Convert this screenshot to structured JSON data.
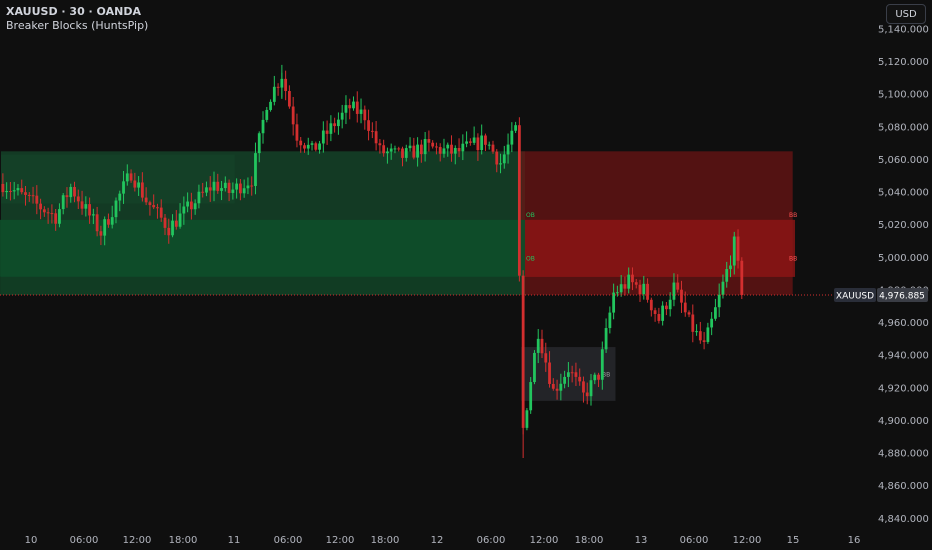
{
  "header": {
    "symbol_line": "XAUUSD · 30 · OANDA",
    "indicator_name": "Breaker Blocks (HuntsPip)"
  },
  "currency_button": "USD",
  "price_axis": {
    "ticks": [
      "5,140.000",
      "5,120.000",
      "5,100.000",
      "5,080.000",
      "5,060.000",
      "5,040.000",
      "5,020.000",
      "5,000.000",
      "4,980.000",
      "4,960.000",
      "4,940.000",
      "4,920.000",
      "4,900.000",
      "4,880.000",
      "4,860.000",
      "4,840.000"
    ],
    "last_price_label": "4,976.885",
    "symbol_tag": "XAUUSD"
  },
  "time_axis": {
    "ticks": [
      "10",
      "06:00",
      "12:00",
      "18:00",
      "11",
      "06:00",
      "12:00",
      "18:00",
      "12",
      "06:00",
      "12:00",
      "18:00",
      "13",
      "06:00",
      "12:00",
      "15",
      "16"
    ]
  },
  "zone_labels": {
    "ob": "OB",
    "bb": "BB"
  },
  "colors": {
    "background": "#0f0f0f",
    "bull": "#22c55e",
    "bear": "#d32f2f",
    "bull_zone": "#164a2c",
    "bear_zone": "#6b1414",
    "neutral_zone": "#26272b"
  },
  "chart_data": {
    "type": "candlestick",
    "symbol": "XAUUSD",
    "timeframe": "30",
    "ylim": [
      4840,
      5145
    ],
    "last_price": 4976.885,
    "anchors": [
      [
        0,
        5045
      ],
      [
        14,
        5025
      ],
      [
        18,
        5043
      ],
      [
        26,
        5015
      ],
      [
        34,
        5052
      ],
      [
        38,
        5035
      ],
      [
        44,
        5018
      ],
      [
        50,
        5032
      ],
      [
        56,
        5045
      ],
      [
        60,
        5040
      ],
      [
        66,
        5048
      ],
      [
        70,
        5095
      ],
      [
        74,
        5112
      ],
      [
        78,
        5075
      ],
      [
        82,
        5065
      ],
      [
        88,
        5082
      ],
      [
        92,
        5092
      ],
      [
        96,
        5087
      ],
      [
        100,
        5065
      ],
      [
        106,
        5062
      ],
      [
        112,
        5068
      ],
      [
        120,
        5064
      ],
      [
        128,
        5072
      ],
      [
        132,
        5058
      ],
      [
        136,
        5078
      ],
      [
        138,
        4895
      ],
      [
        142,
        4955
      ],
      [
        146,
        4918
      ],
      [
        150,
        4932
      ],
      [
        154,
        4915
      ],
      [
        158,
        4928
      ],
      [
        162,
        4978
      ],
      [
        166,
        4985
      ],
      [
        170,
        4980
      ],
      [
        174,
        4962
      ],
      [
        178,
        4982
      ],
      [
        182,
        4960
      ],
      [
        186,
        4945
      ],
      [
        190,
        4975
      ],
      [
        194,
        5008
      ],
      [
        196,
        4979
      ]
    ],
    "zones": [
      {
        "type": "bull",
        "top": 5065,
        "bottom": 4977,
        "label": "OB"
      },
      {
        "type": "bull",
        "top": 5063,
        "bottom": 5033,
        "label": ""
      },
      {
        "type": "bear",
        "top": 5065,
        "bottom": 4977,
        "label": "BB"
      },
      {
        "type": "neutral",
        "top": 4945,
        "bottom": 4912,
        "label": "BB"
      }
    ]
  }
}
